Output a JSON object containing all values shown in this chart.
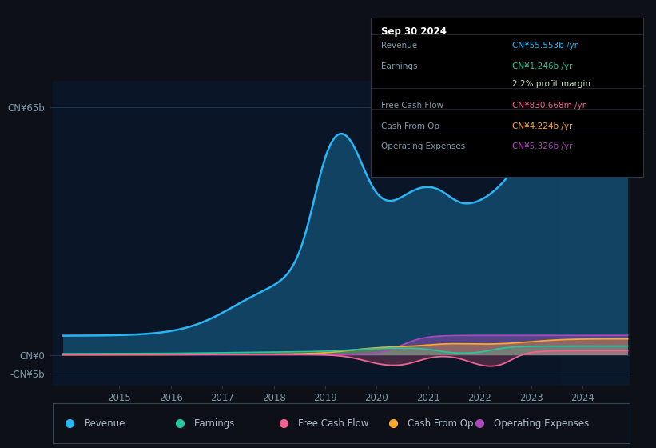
{
  "bg_color": "#0d1117",
  "plot_bg_color": "#0a1628",
  "plot_bg_right": "#0d1f35",
  "grid_color": "#1a3350",
  "text_color": "#7a9aaa",
  "xlim_left": 2013.7,
  "xlim_right": 2024.92,
  "ylim_bottom": -8,
  "ylim_top": 72,
  "ytick_vals": [
    -5,
    0,
    65
  ],
  "ytick_labels": [
    "-CN¥5b",
    "CN¥0",
    "CN¥65b"
  ],
  "xticks": [
    2015,
    2016,
    2017,
    2018,
    2019,
    2020,
    2021,
    2022,
    2023,
    2024
  ],
  "revenue_color": "#29b6f6",
  "earnings_color": "#26c6a0",
  "fcf_color": "#f06292",
  "cashfromop_color": "#ffa726",
  "opex_color": "#ab47bc",
  "tooltip_title": "Sep 30 2024",
  "tooltip_rows": [
    {
      "label": "Revenue",
      "value": "CN¥55.553b /yr",
      "color": "#29b6f6",
      "sep": false
    },
    {
      "label": "Earnings",
      "value": "CN¥1.246b /yr",
      "color": "#26c6a0",
      "sep": false
    },
    {
      "label": "",
      "value": "2.2% profit margin",
      "color": "#ccddcc",
      "sep": false
    },
    {
      "label": "Free Cash Flow",
      "value": "CN¥830.668m /yr",
      "color": "#f06292",
      "sep": true
    },
    {
      "label": "Cash From Op",
      "value": "CN¥4.224b /yr",
      "color": "#ffa726",
      "sep": true
    },
    {
      "label": "Operating Expenses",
      "value": "CN¥5.326b /yr",
      "color": "#ab47bc",
      "sep": true
    }
  ],
  "legend": [
    {
      "label": "Revenue",
      "color": "#29b6f6"
    },
    {
      "label": "Earnings",
      "color": "#26c6a0"
    },
    {
      "label": "Free Cash Flow",
      "color": "#f06292"
    },
    {
      "label": "Cash From Op",
      "color": "#ffa726"
    },
    {
      "label": "Operating Expenses",
      "color": "#ab47bc"
    }
  ]
}
